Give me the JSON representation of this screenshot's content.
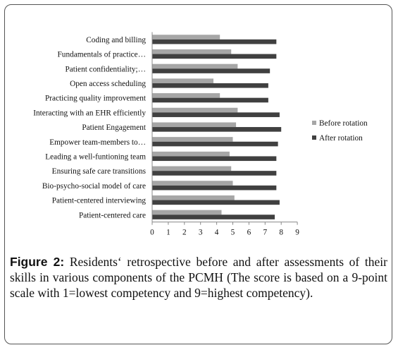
{
  "chart_data": {
    "type": "bar",
    "orientation": "horizontal",
    "categories": [
      "Coding and billing",
      "Fundamentals of practice…",
      "Patient confidentiality;…",
      "Open access scheduling",
      "Practicing quality improvement",
      "Interacting with an EHR efficiently",
      "Patient Engagement",
      "Empower team-members to…",
      "Leading a well-funtioning team",
      "Ensuring safe care transitions",
      "Bio-psycho-social model of care",
      "Patient-centered interviewing",
      "Patient-centered care"
    ],
    "series": [
      {
        "name": "Before rotation",
        "color": "#a6a6a6",
        "values": [
          4.2,
          4.9,
          5.3,
          3.8,
          4.2,
          5.3,
          5.2,
          5.0,
          4.8,
          4.9,
          5.0,
          5.1,
          4.3
        ]
      },
      {
        "name": "After rotation",
        "color": "#404040",
        "values": [
          7.7,
          7.7,
          7.3,
          7.2,
          7.2,
          7.9,
          8.0,
          7.8,
          7.7,
          7.7,
          7.7,
          7.9,
          7.6
        ]
      }
    ],
    "x_ticks": [
      0,
      1,
      2,
      3,
      4,
      5,
      6,
      7,
      8,
      9
    ],
    "xlim": [
      0,
      9
    ],
    "grid": false,
    "legend_position": "right"
  },
  "caption": {
    "label": "Figure 2:",
    "text": "Residents‘ retrospective before and after assessments of their skills in various components of the PCMH (The score is based on a 9-point scale with 1=lowest competency and 9=highest competency)."
  }
}
